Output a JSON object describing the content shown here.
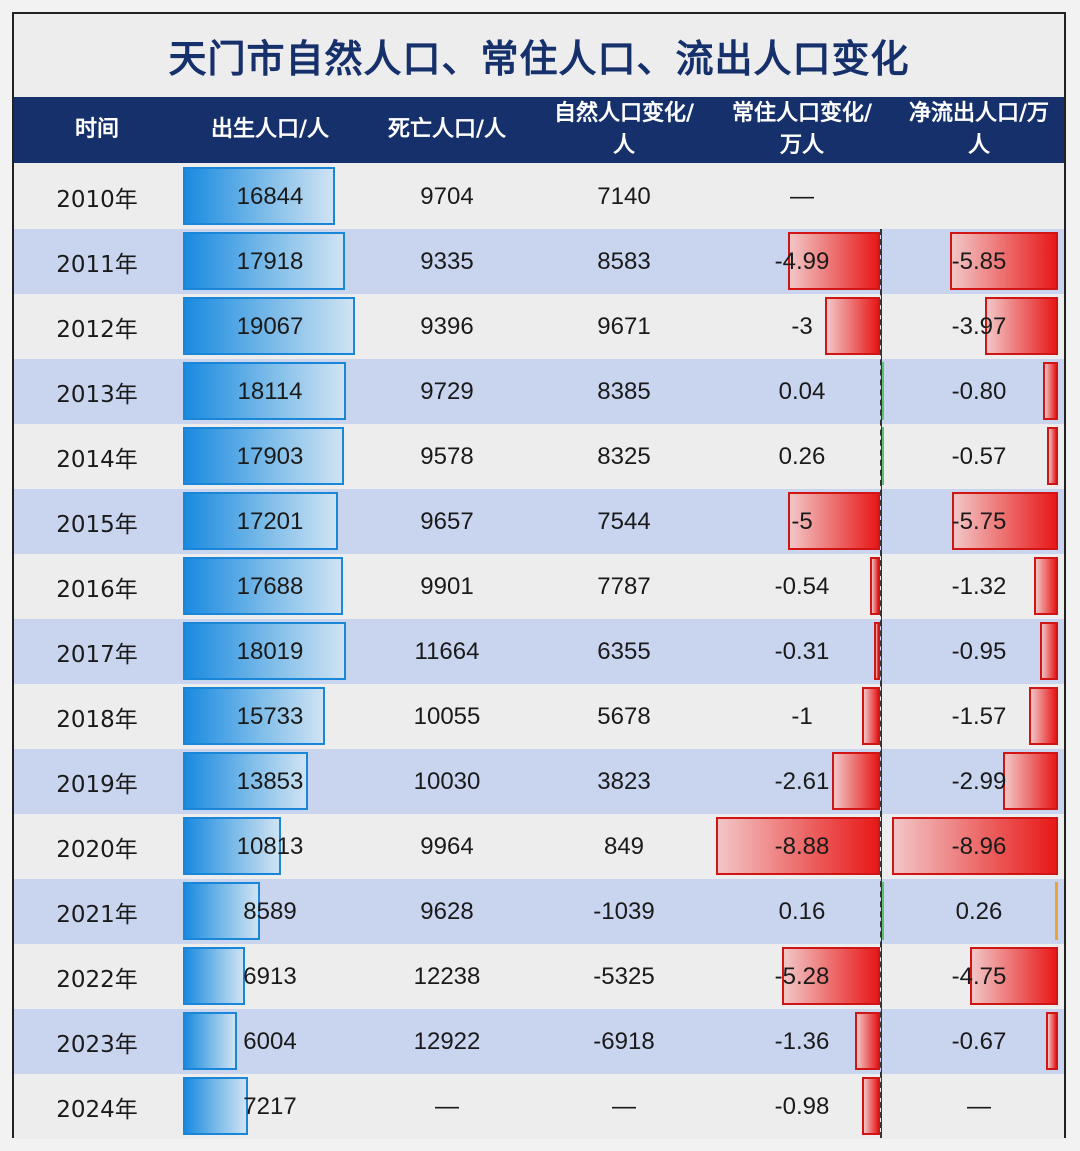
{
  "title": "天门市自然人口、常住人口、流出人口变化",
  "headers": [
    "时间",
    "出生人口/人",
    "死亡人口/人",
    "自然人口变化/人",
    "常住人口变化/万人",
    "净流出人口/万人"
  ],
  "header_lines": [
    [
      "时间"
    ],
    [
      "出生人口/人"
    ],
    [
      "死亡人口/人"
    ],
    [
      "自然人口变化/",
      "人"
    ],
    [
      "常住人口变化/",
      "万人"
    ],
    [
      "净流出人口/万",
      "人"
    ]
  ],
  "colors": {
    "header_bg": "#15306b",
    "title_color": "#15306b",
    "row_odd": "#ededed",
    "row_even": "#c9d4ee",
    "birth_bar": "#1a8ae0",
    "negative_bar": "#e81818",
    "positive_resident_bar": "#5fc06f",
    "positive_net_bar": "#e9a33a"
  },
  "chart_data": {
    "type": "table",
    "columns": [
      "时间",
      "出生人口/人",
      "死亡人口/人",
      "自然人口变化/人",
      "常住人口变化/万人",
      "净流出人口/万人"
    ],
    "rows": [
      {
        "year": "2010年",
        "birth": "16844",
        "death": "9704",
        "natural": "7140",
        "resident": "—",
        "netout": ""
      },
      {
        "year": "2011年",
        "birth": "17918",
        "death": "9335",
        "natural": "8583",
        "resident": "-4.99",
        "netout": "-5.85"
      },
      {
        "year": "2012年",
        "birth": "19067",
        "death": "9396",
        "natural": "9671",
        "resident": "-3",
        "netout": "-3.97"
      },
      {
        "year": "2013年",
        "birth": "18114",
        "death": "9729",
        "natural": "8385",
        "resident": "0.04",
        "netout": "-0.80"
      },
      {
        "year": "2014年",
        "birth": "17903",
        "death": "9578",
        "natural": "8325",
        "resident": "0.26",
        "netout": "-0.57"
      },
      {
        "year": "2015年",
        "birth": "17201",
        "death": "9657",
        "natural": "7544",
        "resident": "-5",
        "netout": "-5.75"
      },
      {
        "year": "2016年",
        "birth": "17688",
        "death": "9901",
        "natural": "7787",
        "resident": "-0.54",
        "netout": "-1.32"
      },
      {
        "year": "2017年",
        "birth": "18019",
        "death": "11664",
        "natural": "6355",
        "resident": "-0.31",
        "netout": "-0.95"
      },
      {
        "year": "2018年",
        "birth": "15733",
        "death": "10055",
        "natural": "5678",
        "resident": "-1",
        "netout": "-1.57"
      },
      {
        "year": "2019年",
        "birth": "13853",
        "death": "10030",
        "natural": "3823",
        "resident": "-2.61",
        "netout": "-2.99"
      },
      {
        "year": "2020年",
        "birth": "10813",
        "death": "9964",
        "natural": "849",
        "resident": "-8.88",
        "netout": "-8.96"
      },
      {
        "year": "2021年",
        "birth": "8589",
        "death": "9628",
        "natural": "-1039",
        "resident": "0.16",
        "netout": "0.26"
      },
      {
        "year": "2022年",
        "birth": "6913",
        "death": "12238",
        "natural": "-5325",
        "resident": "-5.28",
        "netout": "-4.75"
      },
      {
        "year": "2023年",
        "birth": "6004",
        "death": "12922",
        "natural": "-6918",
        "resident": "-1.36",
        "netout": "-0.67"
      },
      {
        "year": "2024年",
        "birth": "7217",
        "death": "—",
        "natural": "—",
        "resident": "-0.98",
        "netout": "—"
      }
    ]
  }
}
